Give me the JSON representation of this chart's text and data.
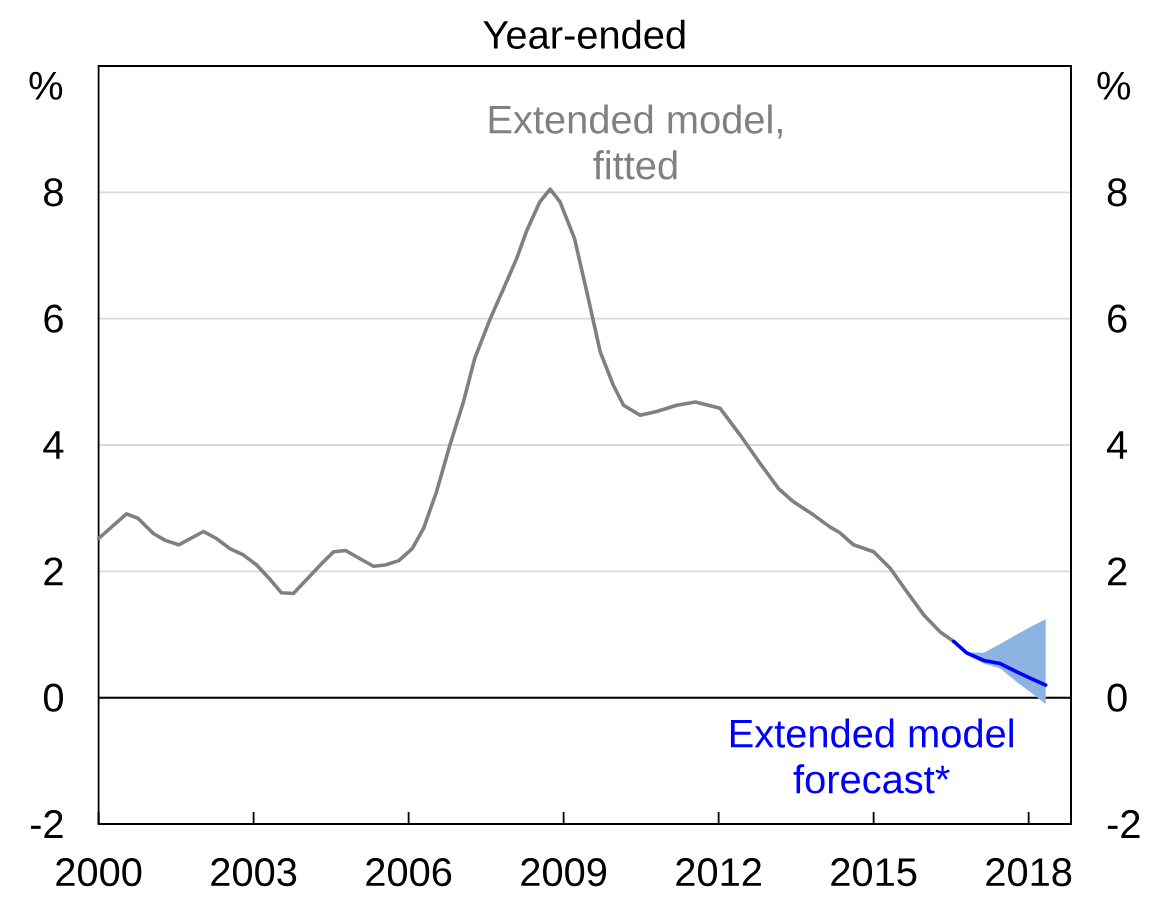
{
  "chart_data": {
    "type": "line",
    "title": "Year-ended",
    "ylabel": "%",
    "y2label": "%",
    "xlim": [
      2000,
      2018.82
    ],
    "xticks": [
      2000,
      2003,
      2006,
      2009,
      2012,
      2015,
      2018
    ],
    "ylim": [
      -2,
      10
    ],
    "yticks": [
      -2,
      0,
      2,
      4,
      6,
      8
    ],
    "y2lim": [
      -2,
      10
    ],
    "y2ticks": [
      -2,
      0,
      2,
      4,
      6,
      8
    ],
    "grid": "y",
    "marker": "none",
    "ref_lines": [
      {
        "axis": "y",
        "value": 0,
        "color": "#000000"
      }
    ],
    "series": [
      {
        "name": "Extended model, fitted",
        "color": "#808080",
        "x": [
          2000.0,
          2000.54,
          2000.76,
          2001.06,
          2001.29,
          2001.55,
          2002.03,
          2002.28,
          2002.54,
          2002.8,
          2003.06,
          2003.32,
          2003.54,
          2003.77,
          2004.05,
          2004.35,
          2004.55,
          2004.78,
          2005.06,
          2005.32,
          2005.55,
          2005.81,
          2006.07,
          2006.29,
          2006.54,
          2006.8,
          2007.06,
          2007.28,
          2007.58,
          2007.84,
          2008.09,
          2008.29,
          2008.54,
          2008.74,
          2008.93,
          2009.21,
          2009.45,
          2009.71,
          2009.96,
          2010.16,
          2010.48,
          2010.8,
          2011.19,
          2011.55,
          2012.03,
          2012.45,
          2012.8,
          2013.16,
          2013.45,
          2013.84,
          2014.16,
          2014.35,
          2014.61,
          2015.0,
          2015.32,
          2015.64,
          2015.97,
          2016.29,
          2016.55
        ],
        "values": [
          2.52,
          2.91,
          2.84,
          2.6,
          2.49,
          2.42,
          2.63,
          2.52,
          2.36,
          2.26,
          2.1,
          1.87,
          1.66,
          1.65,
          1.89,
          2.15,
          2.31,
          2.33,
          2.2,
          2.08,
          2.1,
          2.17,
          2.36,
          2.68,
          3.26,
          4.0,
          4.68,
          5.37,
          6.0,
          6.48,
          6.95,
          7.4,
          7.85,
          8.05,
          7.85,
          7.27,
          6.42,
          5.47,
          4.95,
          4.63,
          4.47,
          4.53,
          4.63,
          4.68,
          4.58,
          4.12,
          3.71,
          3.31,
          3.1,
          2.89,
          2.7,
          2.61,
          2.42,
          2.31,
          2.05,
          1.68,
          1.31,
          1.04,
          0.89
        ]
      },
      {
        "name": "Extended model forecast*",
        "color": "#0000ff",
        "x": [
          2016.55,
          2016.8,
          2017.13,
          2017.45,
          2017.77,
          2018.03,
          2018.33
        ],
        "values": [
          0.89,
          0.71,
          0.59,
          0.54,
          0.41,
          0.31,
          0.2
        ],
        "lower": [
          0.89,
          0.68,
          0.54,
          0.46,
          0.25,
          0.09,
          -0.1
        ],
        "upper": [
          0.89,
          0.72,
          0.71,
          0.85,
          1.0,
          1.12,
          1.24
        ]
      }
    ]
  }
}
